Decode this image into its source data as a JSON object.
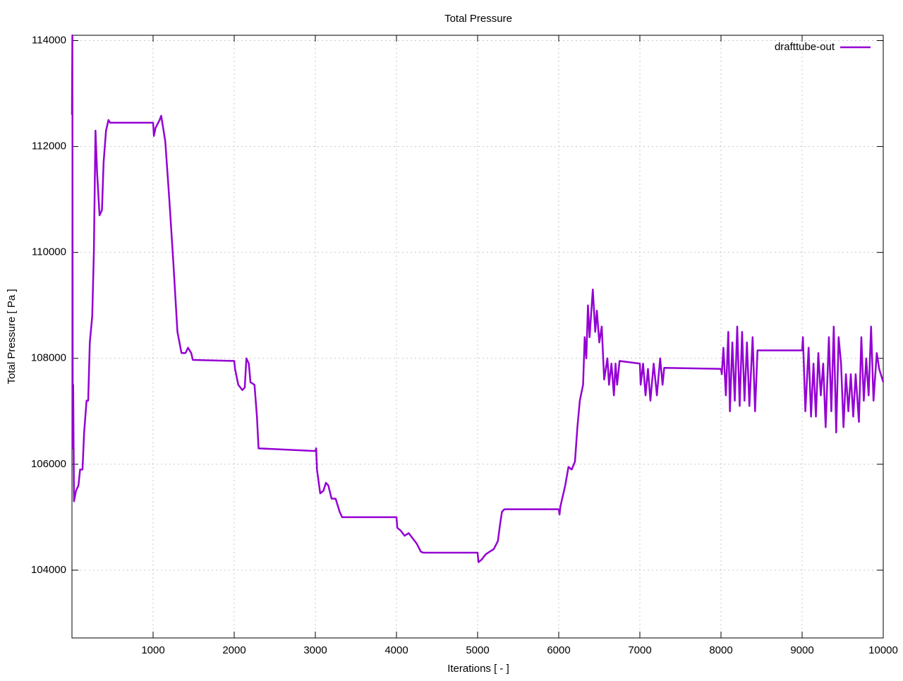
{
  "chart_data": {
    "type": "line",
    "title": "Total Pressure",
    "xlabel": "Iterations [ - ]",
    "ylabel": "Total Pressure [ Pa ]",
    "xlim": [
      0,
      10000
    ],
    "ylim": [
      102720,
      114100
    ],
    "xticks": [
      1000,
      2000,
      3000,
      4000,
      5000,
      6000,
      7000,
      8000,
      9000,
      10000
    ],
    "yticks": [
      104000,
      106000,
      108000,
      110000,
      112000,
      114000
    ],
    "grid": true,
    "legend": "upper right",
    "x": [
      0,
      5,
      10,
      15,
      25,
      50,
      80,
      100,
      130,
      150,
      180,
      200,
      220,
      250,
      270,
      290,
      310,
      340,
      370,
      390,
      420,
      450,
      470,
      1000,
      1010,
      1030,
      1080,
      1100,
      1150,
      1200,
      1250,
      1300,
      1350,
      1400,
      1430,
      1470,
      1490,
      2000,
      2010,
      2050,
      2100,
      2130,
      2150,
      2180,
      2200,
      2250,
      2280,
      2300,
      3000,
      3010,
      3020,
      3060,
      3100,
      3130,
      3160,
      3200,
      3250,
      3300,
      3330,
      4000,
      4010,
      4050,
      4100,
      4150,
      4200,
      4250,
      4300,
      4330,
      5000,
      5010,
      5050,
      5100,
      5150,
      5200,
      5250,
      5280,
      5300,
      5330,
      6000,
      6010,
      6020,
      6080,
      6120,
      6160,
      6200,
      6230,
      6260,
      6300,
      6320,
      6340,
      6360,
      6380,
      6420,
      6450,
      6470,
      6500,
      6530,
      6560,
      6600,
      6620,
      6650,
      6680,
      6700,
      6720,
      6750,
      7000,
      7010,
      7040,
      7070,
      7100,
      7130,
      7170,
      7210,
      7250,
      7280,
      7300,
      8000,
      8010,
      8030,
      8060,
      8090,
      8110,
      8140,
      8170,
      8200,
      8230,
      8260,
      8290,
      8320,
      8350,
      8390,
      8420,
      8450,
      9000,
      9010,
      9040,
      9080,
      9110,
      9140,
      9170,
      9200,
      9230,
      9260,
      9290,
      9330,
      9360,
      9390,
      9420,
      9450,
      9480,
      9510,
      9540,
      9570,
      9600,
      9630,
      9660,
      9700,
      9730,
      9760,
      9790,
      9820,
      9850,
      9880,
      9920,
      9950,
      10000
    ],
    "series": [
      {
        "name": "drafttube-out",
        "color": "#9400d3",
        "values": [
          112600,
          114100,
          106300,
          107500,
          105300,
          105500,
          105600,
          105900,
          105900,
          106600,
          107200,
          107200,
          108300,
          108800,
          110000,
          112300,
          111500,
          110700,
          110800,
          111700,
          112300,
          112500,
          112450,
          112450,
          112200,
          112350,
          112500,
          112580,
          112100,
          111000,
          109800,
          108500,
          108100,
          108100,
          108200,
          108100,
          107970,
          107950,
          107800,
          107500,
          107400,
          107450,
          108000,
          107900,
          107550,
          107500,
          106900,
          106300,
          106250,
          106300,
          105900,
          105450,
          105500,
          105650,
          105600,
          105350,
          105350,
          105100,
          105000,
          105000,
          104800,
          104750,
          104650,
          104700,
          104600,
          104500,
          104350,
          104330,
          104330,
          104150,
          104200,
          104300,
          104350,
          104400,
          104550,
          104900,
          105100,
          105150,
          105150,
          105050,
          105200,
          105600,
          105950,
          105900,
          106050,
          106700,
          107200,
          107500,
          108400,
          108000,
          109000,
          108400,
          109300,
          108500,
          108900,
          108300,
          108600,
          107600,
          108000,
          107500,
          107900,
          107300,
          107900,
          107500,
          107950,
          107900,
          107500,
          107900,
          107300,
          107800,
          107200,
          107900,
          107300,
          108000,
          107500,
          107820,
          107800,
          107700,
          108200,
          107300,
          108500,
          107000,
          108300,
          107200,
          108600,
          107100,
          108500,
          107200,
          108300,
          107100,
          108400,
          107000,
          108150,
          108150,
          108400,
          107000,
          108200,
          106900,
          107900,
          106900,
          108100,
          107300,
          107900,
          106700,
          108400,
          107000,
          108600,
          106600,
          108400,
          107900,
          106700,
          107700,
          107000,
          107700,
          106900,
          107700,
          106800,
          108400,
          107200,
          108000,
          107300,
          108600,
          107200,
          108100,
          107800,
          107550
        ]
      }
    ]
  }
}
